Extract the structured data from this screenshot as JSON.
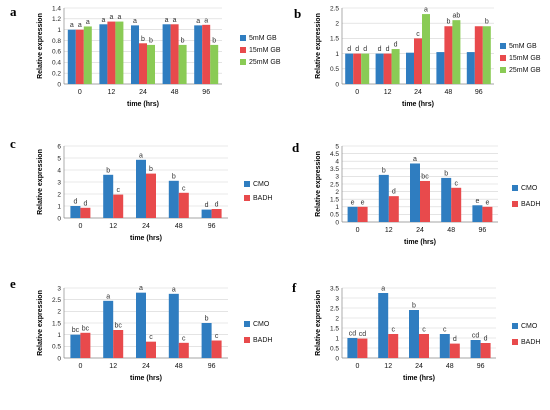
{
  "colors": {
    "blue": "#2F7DC0",
    "red": "#E84A4C",
    "green": "#8ACB55",
    "grid": "#d4d4d4"
  },
  "chart_data": [
    {
      "id": "a",
      "type": "bar",
      "panel_label": "a",
      "categories": [
        "0",
        "12",
        "24",
        "48",
        "96"
      ],
      "xlabel": "time (hrs)",
      "ylabel": "Relative expression",
      "ylim": [
        0,
        1.4
      ],
      "yticks": [
        "0",
        "0.2",
        "0.4",
        "0.6",
        "0.8",
        "1",
        "1.2",
        "1.4"
      ],
      "grid": true,
      "legend_position": "right",
      "series": [
        {
          "name": "5mM  GB",
          "color": "#2F7DC0",
          "values": [
            1.0,
            1.1,
            1.08,
            1.1,
            1.08
          ],
          "labels": [
            "a",
            "a",
            "a",
            "a",
            "a"
          ]
        },
        {
          "name": "15mM GB",
          "color": "#E84A4C",
          "values": [
            1.0,
            1.15,
            0.75,
            1.1,
            1.09
          ],
          "labels": [
            "a",
            "a",
            "b",
            "a",
            "a"
          ]
        },
        {
          "name": "25mM GB",
          "color": "#8ACB55",
          "values": [
            1.06,
            1.15,
            0.72,
            0.72,
            0.72
          ],
          "labels": [
            "a",
            "a",
            "b",
            "b",
            "b"
          ]
        }
      ]
    },
    {
      "id": "b",
      "type": "bar",
      "panel_label": "b",
      "categories": [
        "0",
        "12",
        "24",
        "48",
        "96"
      ],
      "xlabel": "time (hrs)",
      "ylabel": "Relative expression",
      "ylim": [
        0,
        2.5
      ],
      "yticks": [
        "0",
        "0.5",
        "1",
        "1.5",
        "2",
        "2.5"
      ],
      "grid": true,
      "legend_position": "right",
      "series": [
        {
          "name": "5mM  GB",
          "color": "#2F7DC0",
          "values": [
            1.0,
            1.0,
            1.03,
            1.05,
            1.05
          ],
          "labels": [
            "d",
            "d",
            "",
            "",
            ""
          ]
        },
        {
          "name": "15mM GB",
          "color": "#E84A4C",
          "values": [
            1.0,
            1.0,
            1.5,
            1.9,
            1.9
          ],
          "labels": [
            "d",
            "d",
            "c",
            "b",
            ""
          ]
        },
        {
          "name": "25mM GB",
          "color": "#8ACB55",
          "values": [
            1.0,
            1.15,
            2.3,
            2.1,
            1.9
          ],
          "labels": [
            "d",
            "d",
            "a",
            "ab",
            "b"
          ]
        }
      ]
    },
    {
      "id": "c",
      "type": "bar",
      "panel_label": "c",
      "categories": [
        "0",
        "12",
        "24",
        "48",
        "96"
      ],
      "xlabel": "time (hrs)",
      "ylabel": "Relative expression",
      "ylim": [
        0,
        6
      ],
      "yticks": [
        "0",
        "1",
        "2",
        "3",
        "4",
        "5",
        "6"
      ],
      "grid": true,
      "legend_position": "right",
      "series": [
        {
          "name": "CMO",
          "color": "#2F7DC0",
          "values": [
            1.0,
            3.6,
            4.85,
            3.1,
            0.7
          ],
          "labels": [
            "d",
            "b",
            "a",
            "b",
            "d"
          ]
        },
        {
          "name": "BADH",
          "color": "#E84A4C",
          "values": [
            0.85,
            1.95,
            3.7,
            2.1,
            0.75
          ],
          "labels": [
            "d",
            "c",
            "b",
            "c",
            "d"
          ]
        }
      ]
    },
    {
      "id": "d",
      "type": "bar",
      "panel_label": "d",
      "categories": [
        "0",
        "12",
        "24",
        "48",
        "96"
      ],
      "xlabel": "time (hrs)",
      "ylabel": "Relative expression",
      "ylim": [
        0,
        5
      ],
      "yticks": [
        "0",
        "0.5",
        "1",
        "1.5",
        "2",
        "2.5",
        "3",
        "3.5",
        "4",
        "4.5",
        "5"
      ],
      "grid": true,
      "legend_position": "right",
      "series": [
        {
          "name": "CMO",
          "color": "#2F7DC0",
          "values": [
            1.0,
            3.1,
            3.85,
            2.9,
            1.1
          ],
          "labels": [
            "e",
            "b",
            "a",
            "b",
            "e"
          ]
        },
        {
          "name": "BADH",
          "color": "#E84A4C",
          "values": [
            1.0,
            1.7,
            2.7,
            2.25,
            1.0
          ],
          "labels": [
            "e",
            "d",
            "bc",
            "c",
            "e"
          ]
        }
      ]
    },
    {
      "id": "e",
      "type": "bar",
      "panel_label": "e",
      "categories": [
        "0",
        "12",
        "24",
        "48",
        "96"
      ],
      "xlabel": "time (hrs)",
      "ylabel": "Relative expression",
      "ylim": [
        0,
        3
      ],
      "yticks": [
        "0",
        "0.5",
        "1",
        "1.5",
        "2",
        "2.5",
        "3"
      ],
      "grid": true,
      "legend_position": "right",
      "series": [
        {
          "name": "CMO",
          "color": "#2F7DC0",
          "values": [
            1.0,
            2.45,
            2.8,
            2.75,
            1.5
          ],
          "labels": [
            "bc",
            "a",
            "a",
            "a",
            "b"
          ]
        },
        {
          "name": "BADH",
          "color": "#E84A4C",
          "values": [
            1.08,
            1.2,
            0.7,
            0.65,
            0.75
          ],
          "labels": [
            "bc",
            "bc",
            "c",
            "c",
            "c"
          ]
        }
      ]
    },
    {
      "id": "f",
      "type": "bar",
      "panel_label": "f",
      "categories": [
        "0",
        "12",
        "24",
        "48",
        "96"
      ],
      "xlabel": "time (hrs)",
      "ylabel": "Relative expression",
      "ylim": [
        0,
        3.5
      ],
      "yticks": [
        "0",
        "0.5",
        "1",
        "1.5",
        "2",
        "2.5",
        "3",
        "3.5"
      ],
      "grid": true,
      "legend_position": "right",
      "series": [
        {
          "name": "CMO",
          "color": "#2F7DC0",
          "values": [
            1.0,
            3.25,
            2.4,
            1.2,
            0.9
          ],
          "labels": [
            "cd",
            "a",
            "b",
            "c",
            "cd"
          ]
        },
        {
          "name": "BADH",
          "color": "#E84A4C",
          "values": [
            0.97,
            1.2,
            1.2,
            0.72,
            0.75
          ],
          "labels": [
            "cd",
            "c",
            "c",
            "d",
            "d"
          ]
        }
      ]
    }
  ]
}
